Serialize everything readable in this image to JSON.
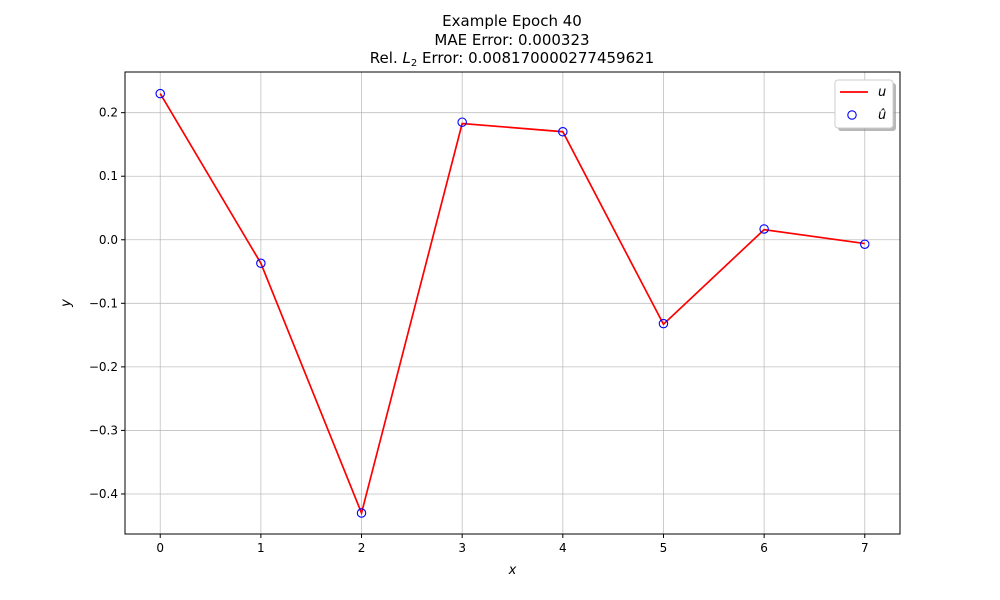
{
  "chart_data": {
    "type": "line",
    "title_lines": [
      "Example Epoch 40",
      "MAE Error: 0.000323"
    ],
    "title_line3_prefix": "Rel. ",
    "title_line3_math": "L",
    "title_line3_sub": "2",
    "title_line3_suffix": " Error: 0.00817000027745962​1",
    "xlabel": "x",
    "ylabel": "y",
    "xlim": [
      -0.35,
      7.35
    ],
    "ylim": [
      -0.463,
      0.264
    ],
    "xticks": [
      0,
      1,
      2,
      3,
      4,
      5,
      6,
      7
    ],
    "yticks": [
      -0.4,
      -0.3,
      -0.2,
      -0.1,
      0.0,
      0.1,
      0.2
    ],
    "ytick_labels": [
      "−0.4",
      "−0.3",
      "−0.2",
      "−0.1",
      "0.0",
      "0.1",
      "0.2"
    ],
    "grid": true,
    "legend_position": "upper right",
    "series": [
      {
        "name": "u",
        "kind": "line",
        "color": "#ff0000",
        "x": [
          0,
          1,
          2,
          3,
          4,
          5,
          6,
          7
        ],
        "y": [
          0.23,
          -0.037,
          -0.43,
          0.183,
          0.17,
          -0.133,
          0.016,
          -0.006
        ]
      },
      {
        "name": "û",
        "kind": "scatter",
        "color": "#0000ff",
        "x": [
          0,
          1,
          2,
          3,
          4,
          5,
          6,
          7
        ],
        "y": [
          0.23,
          -0.037,
          -0.43,
          0.185,
          0.17,
          -0.132,
          0.017,
          -0.007
        ]
      }
    ]
  }
}
